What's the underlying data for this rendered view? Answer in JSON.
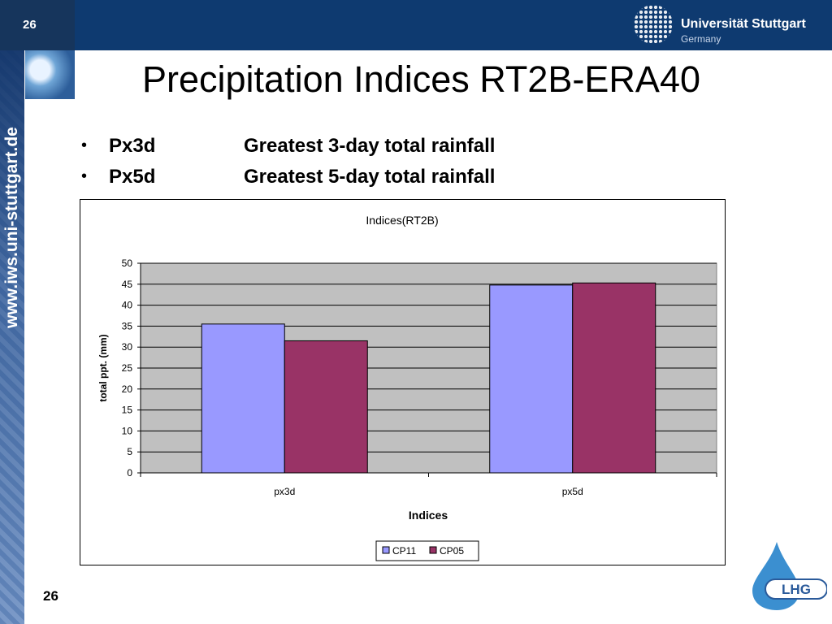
{
  "slide": {
    "number": "26",
    "title": "Precipitation Indices RT2B-ERA40",
    "side_url": "www.iws.uni-stuttgart.de",
    "university": "Universität Stuttgart",
    "country": "Germany",
    "lhg_logo": "LHG",
    "bullets": [
      {
        "code": "Px3d",
        "desc": "Greatest 3-day total rainfall"
      },
      {
        "code": "Px5d",
        "desc": "Greatest 5-day total rainfall"
      }
    ]
  },
  "colors": {
    "cp11": "#9999ff",
    "cp05": "#993366",
    "plot_bg": "#c0c0c0",
    "header": "#0e3a70"
  },
  "chart_data": {
    "type": "bar",
    "title": "Indices(RT2B)",
    "xlabel": "Indices",
    "ylabel": "total ppt. (mm)",
    "categories": [
      "px3d",
      "px5d"
    ],
    "series": [
      {
        "name": "CP11",
        "values": [
          35.5,
          44.8
        ]
      },
      {
        "name": "CP05",
        "values": [
          31.5,
          45.3
        ]
      }
    ],
    "ylim": [
      0,
      50
    ],
    "yticks": [
      "0",
      "5",
      "10",
      "15",
      "20",
      "25",
      "30",
      "35",
      "40",
      "45",
      "50"
    ],
    "grid": true,
    "legend": "bottom"
  }
}
